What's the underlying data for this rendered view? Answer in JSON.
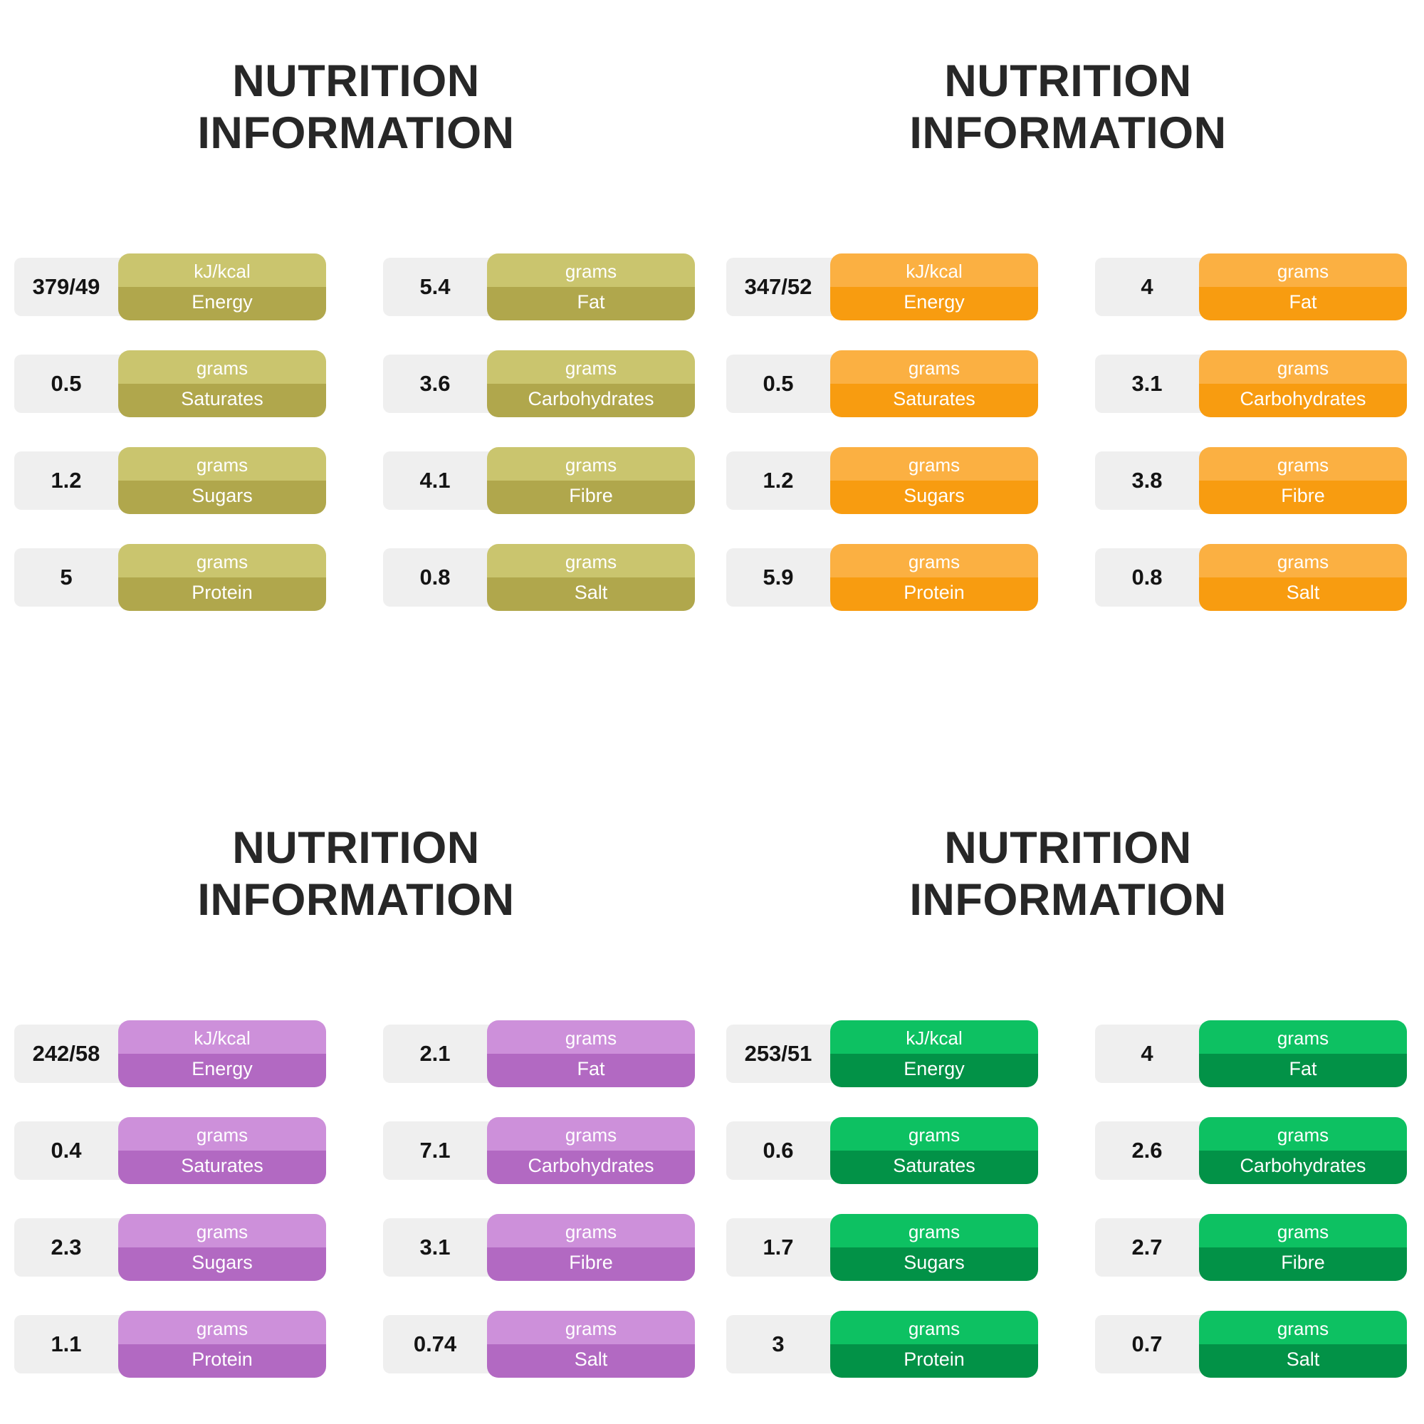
{
  "chart_data": {
    "type": "table",
    "title": "NUTRITION INFORMATION (4 panels)",
    "columns": [
      "Nutrient",
      "Panel 1 (olive)",
      "Panel 2 (orange)",
      "Panel 3 (purple)",
      "Panel 4 (green)"
    ],
    "rows": [
      [
        "Energy (kJ/kcal)",
        "379/49",
        "347/52",
        "242/58",
        "253/51"
      ],
      [
        "Fat (grams)",
        "5.4",
        "4",
        "2.1",
        "4"
      ],
      [
        "Saturates (grams)",
        "0.5",
        "0.5",
        "0.4",
        "0.6"
      ],
      [
        "Carbohydrates (grams)",
        "3.6",
        "3.1",
        "7.1",
        "2.6"
      ],
      [
        "Sugars (grams)",
        "1.2",
        "1.2",
        "2.3",
        "1.7"
      ],
      [
        "Fibre (grams)",
        "4.1",
        "3.8",
        "3.1",
        "2.7"
      ],
      [
        "Protein (grams)",
        "5",
        "5.9",
        "1.1",
        "3"
      ],
      [
        "Salt (grams)",
        "0.8",
        "0.8",
        "0.74",
        "0.7"
      ]
    ]
  },
  "panels": [
    {
      "title_line1": "NUTRITION",
      "title_line2": "INFORMATION",
      "colors": {
        "light": "#cac56e",
        "dark": "#b0a74c"
      },
      "rows": [
        {
          "value": "379/49",
          "unit": "kJ/kcal",
          "label": "Energy"
        },
        {
          "value": "5.4",
          "unit": "grams",
          "label": "Fat"
        },
        {
          "value": "0.5",
          "unit": "grams",
          "label": "Saturates"
        },
        {
          "value": "3.6",
          "unit": "grams",
          "label": "Carbohydrates"
        },
        {
          "value": "1.2",
          "unit": "grams",
          "label": "Sugars"
        },
        {
          "value": "4.1",
          "unit": "grams",
          "label": "Fibre"
        },
        {
          "value": "5",
          "unit": "grams",
          "label": "Protein"
        },
        {
          "value": "0.8",
          "unit": "grams",
          "label": "Salt"
        }
      ]
    },
    {
      "title_line1": "NUTRITION",
      "title_line2": "INFORMATION",
      "colors": {
        "light": "#fbb042",
        "dark": "#f89c10"
      },
      "rows": [
        {
          "value": "347/52",
          "unit": "kJ/kcal",
          "label": "Energy"
        },
        {
          "value": "4",
          "unit": "grams",
          "label": "Fat"
        },
        {
          "value": "0.5",
          "unit": "grams",
          "label": "Saturates"
        },
        {
          "value": "3.1",
          "unit": "grams",
          "label": "Carbohydrates"
        },
        {
          "value": "1.2",
          "unit": "grams",
          "label": "Sugars"
        },
        {
          "value": "3.8",
          "unit": "grams",
          "label": "Fibre"
        },
        {
          "value": "5.9",
          "unit": "grams",
          "label": "Protein"
        },
        {
          "value": "0.8",
          "unit": "grams",
          "label": "Salt"
        }
      ]
    },
    {
      "title_line1": "NUTRITION",
      "title_line2": "INFORMATION",
      "colors": {
        "light": "#cd90da",
        "dark": "#b269c2"
      },
      "rows": [
        {
          "value": "242/58",
          "unit": "kJ/kcal",
          "label": "Energy"
        },
        {
          "value": "2.1",
          "unit": "grams",
          "label": "Fat"
        },
        {
          "value": "0.4",
          "unit": "grams",
          "label": "Saturates"
        },
        {
          "value": "7.1",
          "unit": "grams",
          "label": "Carbohydrates"
        },
        {
          "value": "2.3",
          "unit": "grams",
          "label": "Sugars"
        },
        {
          "value": "3.1",
          "unit": "grams",
          "label": "Fibre"
        },
        {
          "value": "1.1",
          "unit": "grams",
          "label": "Protein"
        },
        {
          "value": "0.74",
          "unit": "grams",
          "label": "Salt"
        }
      ]
    },
    {
      "title_line1": "NUTRITION",
      "title_line2": "INFORMATION",
      "colors": {
        "light": "#0dc162",
        "dark": "#029247"
      },
      "rows": [
        {
          "value": "253/51",
          "unit": "kJ/kcal",
          "label": "Energy"
        },
        {
          "value": "4",
          "unit": "grams",
          "label": "Fat"
        },
        {
          "value": "0.6",
          "unit": "grams",
          "label": "Saturates"
        },
        {
          "value": "2.6",
          "unit": "grams",
          "label": "Carbohydrates"
        },
        {
          "value": "1.7",
          "unit": "grams",
          "label": "Sugars"
        },
        {
          "value": "2.7",
          "unit": "grams",
          "label": "Fibre"
        },
        {
          "value": "3",
          "unit": "grams",
          "label": "Protein"
        },
        {
          "value": "0.7",
          "unit": "grams",
          "label": "Salt"
        }
      ]
    }
  ]
}
